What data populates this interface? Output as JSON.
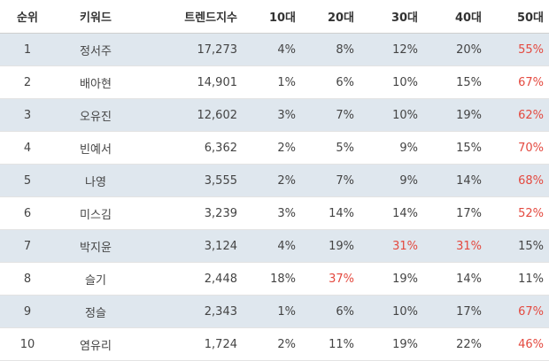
{
  "table": {
    "headers": [
      "순위",
      "키워드",
      "트렌드지수",
      "10대",
      "20대",
      "30대",
      "40대",
      "50대"
    ],
    "rows": [
      {
        "rank": "1",
        "keyword": "정서주",
        "trend": "17,273",
        "ages": [
          "4%",
          "8%",
          "12%",
          "20%",
          "55%"
        ],
        "highlight": [
          4
        ]
      },
      {
        "rank": "2",
        "keyword": "배아현",
        "trend": "14,901",
        "ages": [
          "1%",
          "6%",
          "10%",
          "15%",
          "67%"
        ],
        "highlight": [
          4
        ]
      },
      {
        "rank": "3",
        "keyword": "오유진",
        "trend": "12,602",
        "ages": [
          "3%",
          "7%",
          "10%",
          "19%",
          "62%"
        ],
        "highlight": [
          4
        ]
      },
      {
        "rank": "4",
        "keyword": "빈예서",
        "trend": "6,362",
        "ages": [
          "2%",
          "5%",
          "9%",
          "15%",
          "70%"
        ],
        "highlight": [
          4
        ]
      },
      {
        "rank": "5",
        "keyword": "나영",
        "trend": "3,555",
        "ages": [
          "2%",
          "7%",
          "9%",
          "14%",
          "68%"
        ],
        "highlight": [
          4
        ]
      },
      {
        "rank": "6",
        "keyword": "미스김",
        "trend": "3,239",
        "ages": [
          "3%",
          "14%",
          "14%",
          "17%",
          "52%"
        ],
        "highlight": [
          4
        ]
      },
      {
        "rank": "7",
        "keyword": "박지윤",
        "trend": "3,124",
        "ages": [
          "4%",
          "19%",
          "31%",
          "31%",
          "15%"
        ],
        "highlight": [
          2,
          3
        ]
      },
      {
        "rank": "8",
        "keyword": "슬기",
        "trend": "2,448",
        "ages": [
          "18%",
          "37%",
          "19%",
          "14%",
          "11%"
        ],
        "highlight": [
          1
        ]
      },
      {
        "rank": "9",
        "keyword": "정슬",
        "trend": "2,343",
        "ages": [
          "1%",
          "6%",
          "10%",
          "17%",
          "67%"
        ],
        "highlight": [
          4
        ]
      },
      {
        "rank": "10",
        "keyword": "염유리",
        "trend": "1,724",
        "ages": [
          "2%",
          "11%",
          "19%",
          "22%",
          "46%"
        ],
        "highlight": [
          4
        ]
      }
    ]
  },
  "colors": {
    "highlight": "#e4493f",
    "stripe": "#dfe7ee"
  }
}
